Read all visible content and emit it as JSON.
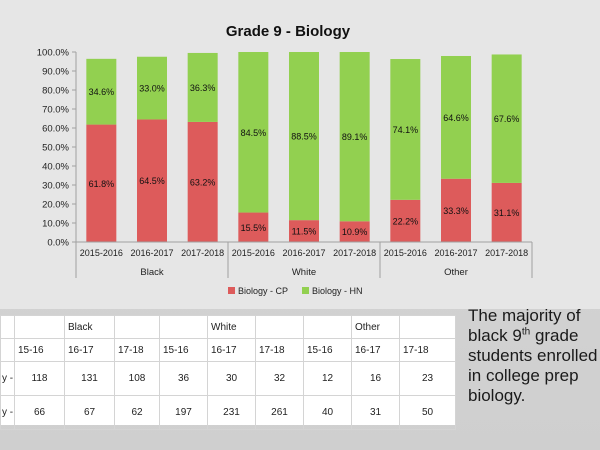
{
  "chart_data": {
    "type": "bar",
    "stacked": true,
    "title": "Grade 9 - Biology",
    "groups": [
      "Black",
      "White",
      "Other"
    ],
    "categories": [
      "2015-2016",
      "2016-2017",
      "2017-2018",
      "2015-2016",
      "2016-2017",
      "2017-2018",
      "2015-2016",
      "2016-2017",
      "2017-2018"
    ],
    "y_ticks": [
      "0.0%",
      "10.0%",
      "20.0%",
      "30.0%",
      "40.0%",
      "50.0%",
      "60.0%",
      "70.0%",
      "80.0%",
      "90.0%",
      "100.0%"
    ],
    "ylim": [
      0,
      100
    ],
    "series": [
      {
        "name": "Biology - CP",
        "color": "#dd5b5b",
        "values": [
          61.8,
          64.5,
          63.2,
          15.5,
          11.5,
          10.9,
          22.2,
          33.3,
          31.1
        ],
        "labels": [
          "61.8%",
          "64.5%",
          "63.2%",
          "15.5%",
          "11.5%",
          "10.9%",
          "22.2%",
          "33.3%",
          "31.1%"
        ]
      },
      {
        "name": "Biology - HN",
        "color": "#92d050",
        "values": [
          34.6,
          33.0,
          36.3,
          84.5,
          88.5,
          89.1,
          74.1,
          64.6,
          67.6
        ],
        "labels": [
          "34.6%",
          "33.0%",
          "36.3%",
          "84.5%",
          "88.5%",
          "89.1%",
          "74.1%",
          "64.6%",
          "67.6%"
        ]
      }
    ],
    "legend_position": "bottom",
    "grid": false
  },
  "table": {
    "group_headers": [
      "Black",
      "White",
      "Other"
    ],
    "year_headers": [
      "15-16",
      "16-17",
      "17-18",
      "15-16",
      "16-17",
      "17-18",
      "15-16",
      "16-17",
      "17-18"
    ],
    "rows": [
      {
        "label": "y -",
        "values": [
          "118",
          "131",
          "108",
          "36",
          "30",
          "32",
          "12",
          "16",
          "23"
        ]
      },
      {
        "label": "y -",
        "values": [
          "66",
          "67",
          "62",
          "197",
          "231",
          "261",
          "40",
          "31",
          "50"
        ]
      }
    ]
  },
  "side_text": {
    "line1": "The majority of",
    "line2_pre": "black 9",
    "line2_sup": "th",
    "line2_post": " grade",
    "line3": "students enrolled",
    "line4": "in college prep",
    "line5": "biology."
  }
}
